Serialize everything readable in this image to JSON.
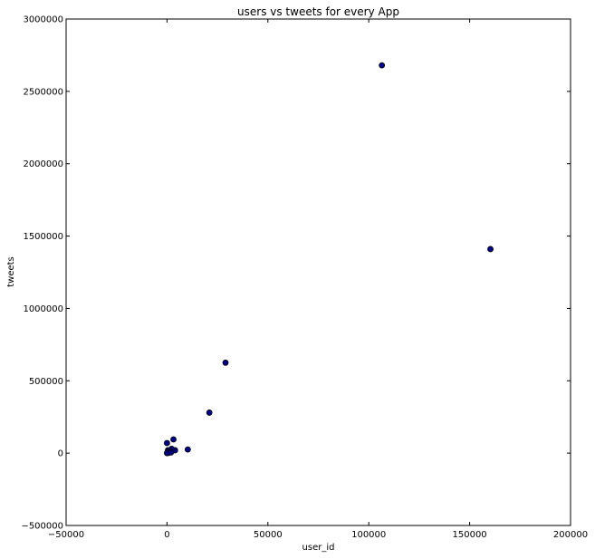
{
  "chart_data": {
    "type": "scatter",
    "title": "users vs tweets for every App",
    "xlabel": "user_id",
    "ylabel": "tweets",
    "xlim": [
      -50000,
      200000
    ],
    "ylim": [
      -500000,
      3000000
    ],
    "xticks": [
      -50000,
      0,
      50000,
      100000,
      150000,
      200000
    ],
    "yticks": [
      -500000,
      0,
      500000,
      1000000,
      1500000,
      2000000,
      2500000,
      3000000
    ],
    "xtick_labels": [
      "−50000",
      "0",
      "50000",
      "100000",
      "150000",
      "200000"
    ],
    "ytick_labels": [
      "−500000",
      "0",
      "500000",
      "1000000",
      "1500000",
      "2000000",
      "2500000",
      "3000000"
    ],
    "grid": false,
    "marker_color": "#00008b",
    "marker_edge_color": "#000000",
    "points": [
      {
        "x": 106500,
        "y": 2680000
      },
      {
        "x": 160300,
        "y": 1410000
      },
      {
        "x": 29000,
        "y": 625000
      },
      {
        "x": 21000,
        "y": 280000
      },
      {
        "x": 3200,
        "y": 95000
      },
      {
        "x": 0,
        "y": 70000
      },
      {
        "x": 10300,
        "y": 25000
      },
      {
        "x": 4000,
        "y": 20000
      },
      {
        "x": 2300,
        "y": 30000
      },
      {
        "x": 1500,
        "y": 15000
      },
      {
        "x": 1000,
        "y": 8000
      },
      {
        "x": 500,
        "y": 20000
      },
      {
        "x": 200,
        "y": 5000
      },
      {
        "x": 0,
        "y": 0
      },
      {
        "x": 300,
        "y": 10000
      },
      {
        "x": 800,
        "y": 2000
      },
      {
        "x": 100,
        "y": 1000
      },
      {
        "x": 2000,
        "y": 5000
      }
    ]
  }
}
